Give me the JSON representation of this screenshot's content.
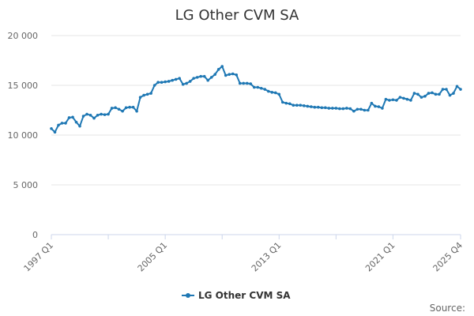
{
  "chart_data": {
    "type": "line",
    "title": "LG Other CVM SA",
    "xlabel": "",
    "ylabel": "",
    "ylim": [
      0,
      20000
    ],
    "yticks": [
      "0",
      "5 000",
      "10 000",
      "15 000",
      "20 000"
    ],
    "ytick_values": [
      0,
      5000,
      10000,
      15000,
      20000
    ],
    "xticks": [
      "1997 Q1",
      "2005 Q1",
      "2013 Q1",
      "2021 Q1",
      "2025 Q4"
    ],
    "xtick_index": [
      0,
      32,
      64,
      96,
      115
    ],
    "grid": true,
    "legend_position": "bottom-center",
    "series": [
      {
        "name": "LG Other CVM SA",
        "color": "#1f78b4",
        "x_start": "1997 Q1",
        "x_end": "2025 Q4",
        "values": [
          10650,
          10300,
          11000,
          11200,
          11200,
          11750,
          11800,
          11300,
          10900,
          11900,
          12100,
          12000,
          11700,
          12000,
          12100,
          12050,
          12100,
          12700,
          12750,
          12600,
          12400,
          12750,
          12800,
          12800,
          12400,
          13800,
          14000,
          14100,
          14200,
          15000,
          15300,
          15300,
          15350,
          15400,
          15500,
          15600,
          15700,
          15100,
          15200,
          15400,
          15700,
          15800,
          15900,
          15900,
          15500,
          15800,
          16100,
          16600,
          16900,
          16000,
          16100,
          16150,
          16050,
          15200,
          15200,
          15200,
          15150,
          14800,
          14800,
          14700,
          14600,
          14400,
          14300,
          14250,
          14100,
          13300,
          13200,
          13150,
          13000,
          13000,
          13000,
          12950,
          12900,
          12850,
          12800,
          12800,
          12750,
          12750,
          12700,
          12700,
          12700,
          12650,
          12650,
          12700,
          12650,
          12400,
          12600,
          12600,
          12500,
          12500,
          13200,
          12900,
          12850,
          12700,
          13600,
          13500,
          13550,
          13500,
          13800,
          13700,
          13600,
          13500,
          14200,
          14100,
          13800,
          13900,
          14200,
          14250,
          14100,
          14100,
          14600,
          14600,
          14000,
          14200,
          14900,
          14600
        ]
      }
    ]
  },
  "source_label": "Source:"
}
